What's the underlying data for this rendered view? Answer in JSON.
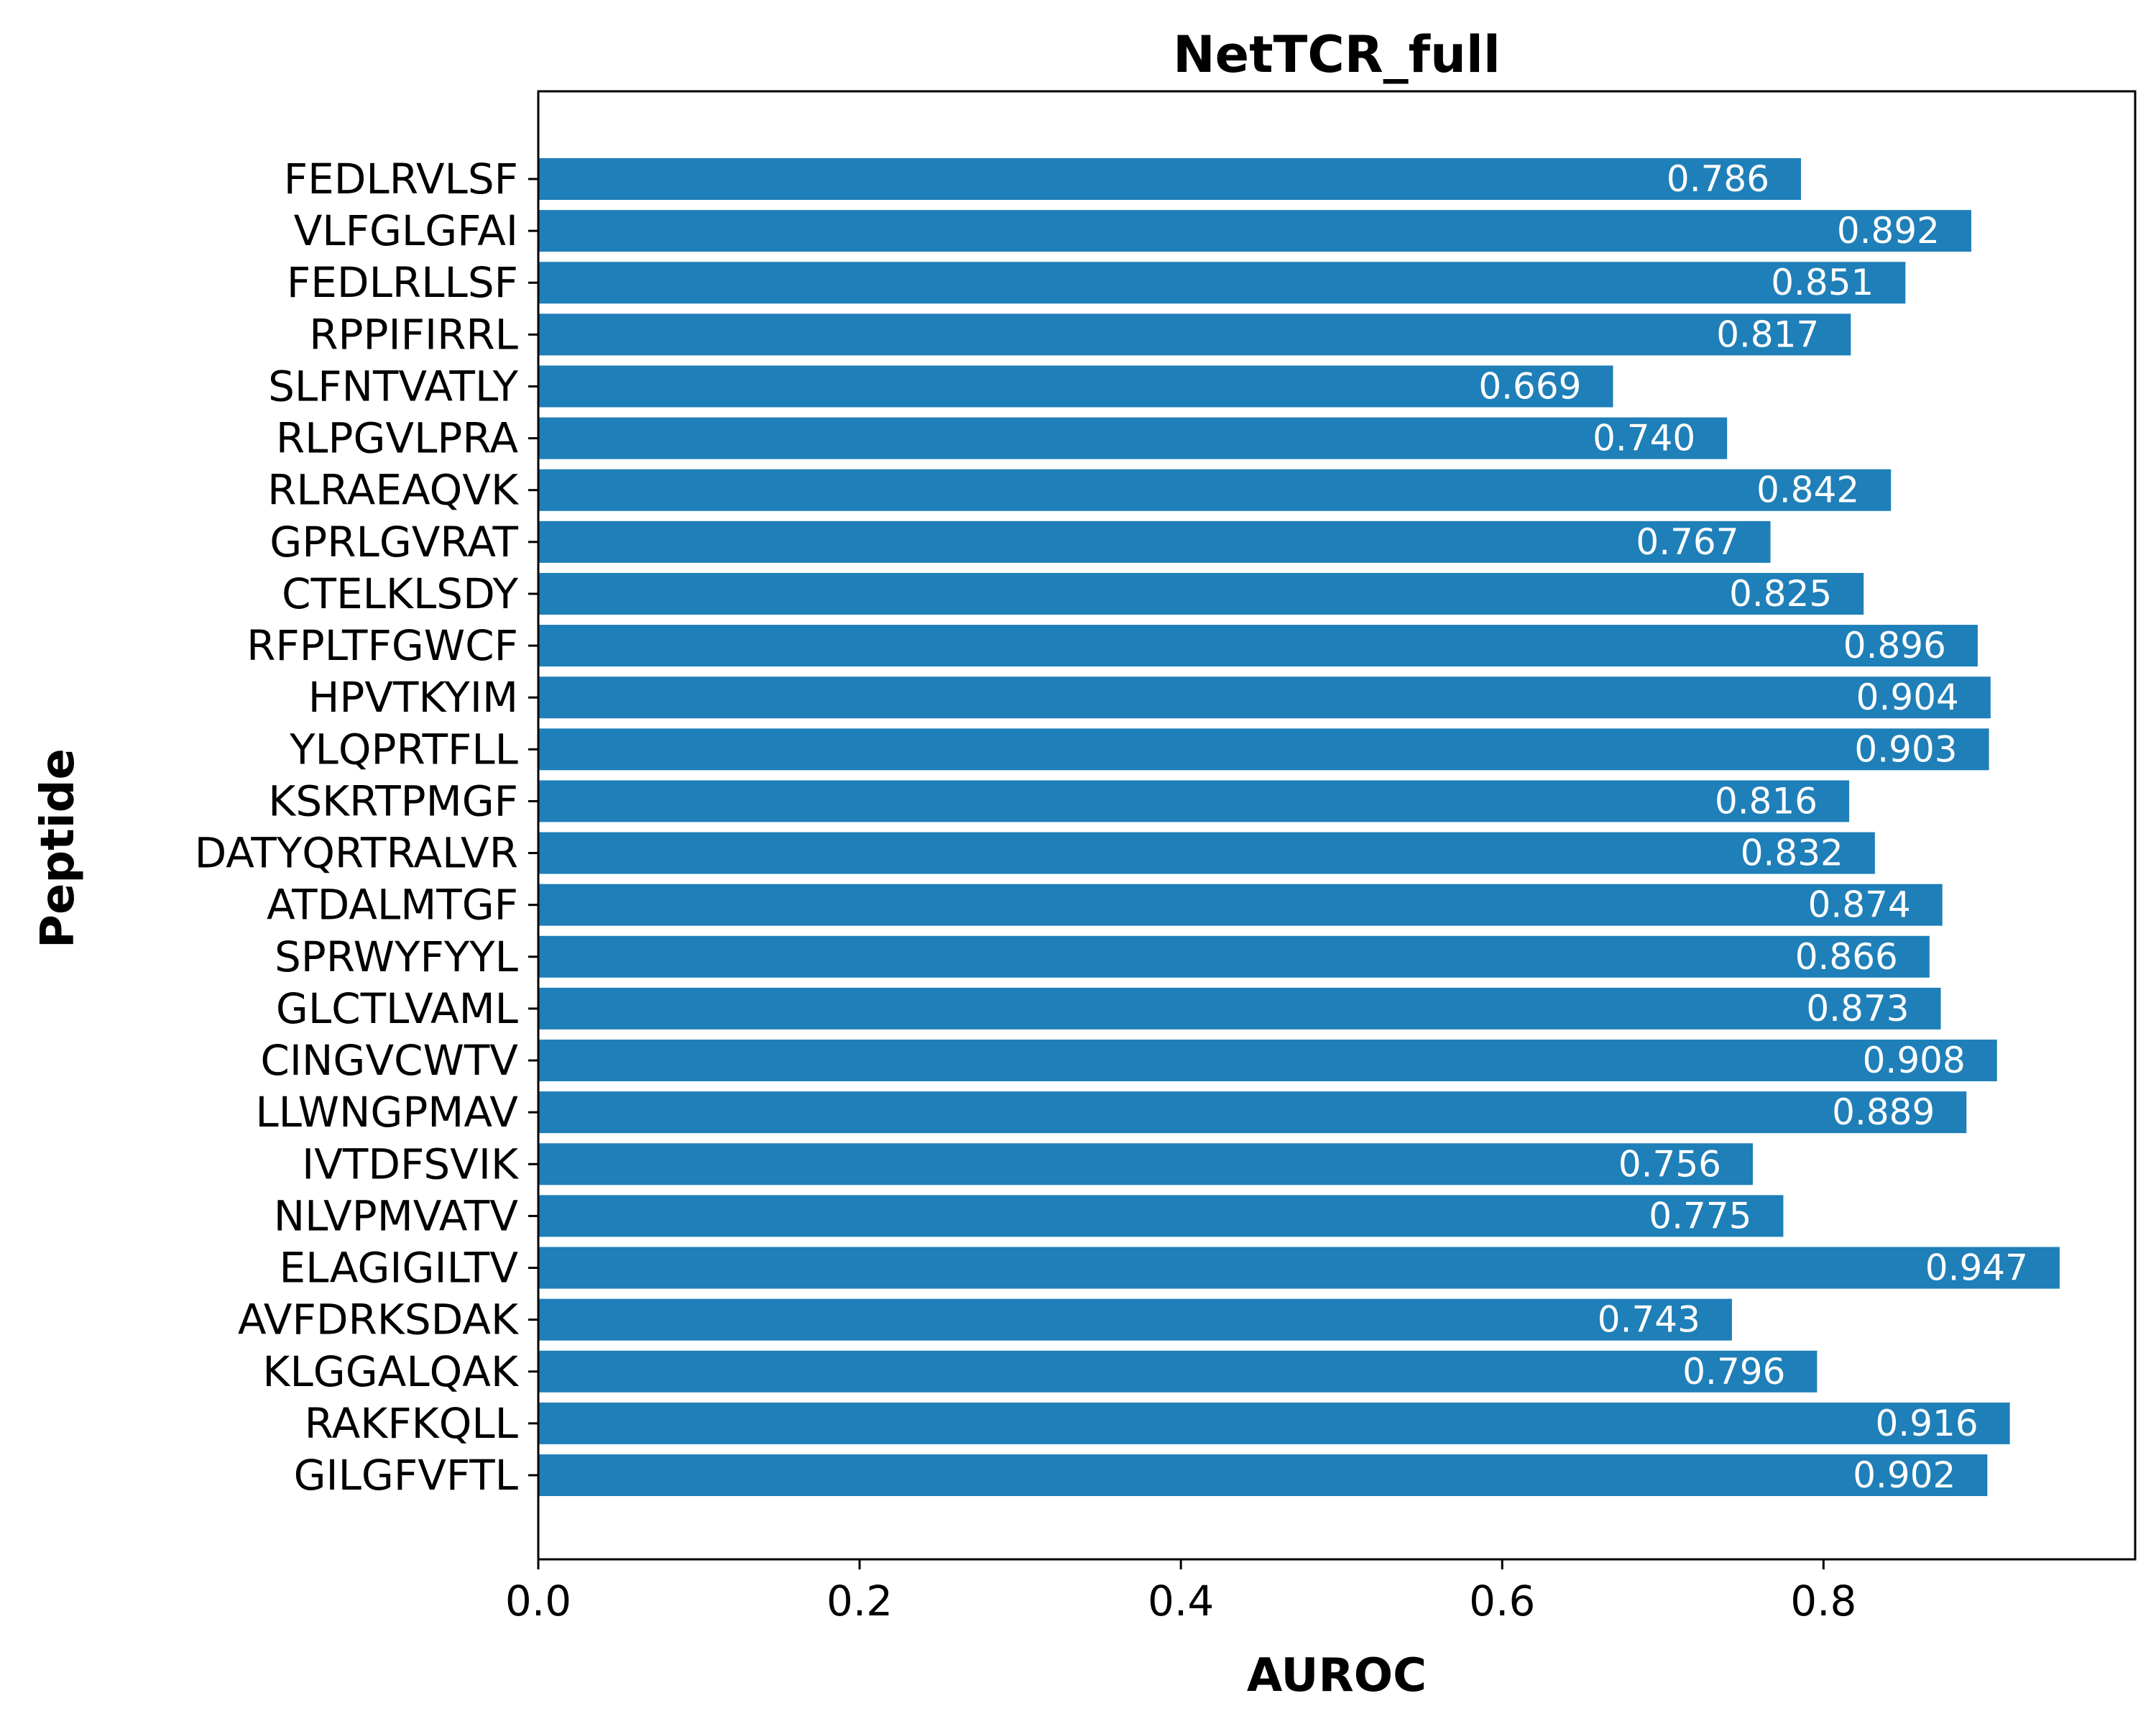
{
  "chart_data": {
    "type": "bar",
    "orientation": "horizontal",
    "title": "NetTCR_full",
    "xlabel": "AUROC",
    "ylabel": "Peptide",
    "categories": [
      "FEDLRVLSF",
      "VLFGLGFAI",
      "FEDLRLLSF",
      "RPPIFIRRL",
      "SLFNTVATLY",
      "RLPGVLPRA",
      "RLRAEAQVK",
      "GPRLGVRAT",
      "CTELKLSDY",
      "RFPLTFGWCF",
      "HPVTKYIM",
      "YLQPRTFLL",
      "KSKRTPMGF",
      "DATYQRTRALVR",
      "ATDALMTGF",
      "SPRWYFYYL",
      "GLCTLVAML",
      "CINGVCWTV",
      "LLWNGPMAV",
      "IVTDFSVIK",
      "NLVPMVATV",
      "ELAGIGILTV",
      "AVFDRKSDAK",
      "KLGGALQAK",
      "RAKFKQLL",
      "GILGFVFTL"
    ],
    "values": [
      0.786,
      0.892,
      0.851,
      0.817,
      0.669,
      0.74,
      0.842,
      0.767,
      0.825,
      0.896,
      0.904,
      0.903,
      0.816,
      0.832,
      0.874,
      0.866,
      0.873,
      0.908,
      0.889,
      0.756,
      0.775,
      0.947,
      0.743,
      0.796,
      0.916,
      0.902
    ],
    "value_labels": [
      "0.786",
      "0.892",
      "0.851",
      "0.817",
      "0.669",
      "0.740",
      "0.842",
      "0.767",
      "0.825",
      "0.896",
      "0.904",
      "0.903",
      "0.816",
      "0.832",
      "0.874",
      "0.866",
      "0.873",
      "0.908",
      "0.889",
      "0.756",
      "0.775",
      "0.947",
      "0.743",
      "0.796",
      "0.916",
      "0.902"
    ],
    "xticks": [
      "0.0",
      "0.2",
      "0.4",
      "0.6",
      "0.8"
    ],
    "xlim": [
      0,
      0.994
    ],
    "grid": false,
    "bar_color": "#1f7fb8",
    "bar_label_color": "#ffffff"
  }
}
